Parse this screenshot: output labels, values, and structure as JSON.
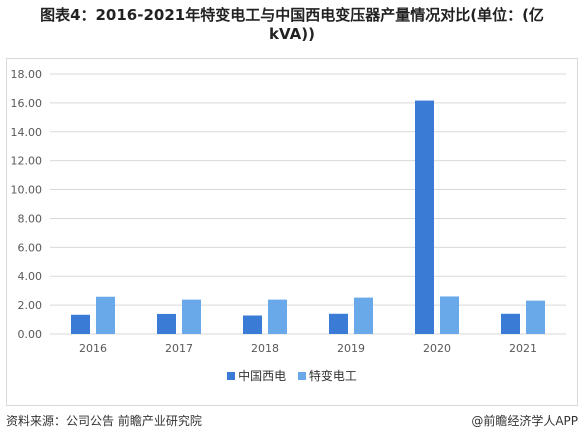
{
  "header": {
    "title_line1": "图表4：2016-2021年特变电工与中国西电变压器产量情况对比(单位：(亿",
    "title_line2": "kVA))"
  },
  "footer": {
    "source": "资料来源：公司公告 前瞻产业研究院",
    "brand": "@前瞻经济学人APP"
  },
  "colors": {
    "series1": "#3a7bd5",
    "series2": "#6aa9e9",
    "grid": "#d9d9d9",
    "axis_text": "#595959"
  },
  "chart_data": {
    "type": "bar",
    "title": "图表4：2016-2021年特变电工与中国西电变压器产量情况对比(单位：(亿kVA))",
    "categories": [
      "2016",
      "2017",
      "2018",
      "2019",
      "2020",
      "2021"
    ],
    "series": [
      {
        "name": "中国西电",
        "values": [
          1.33,
          1.39,
          1.28,
          1.4,
          16.16,
          1.4
        ]
      },
      {
        "name": "特变电工",
        "values": [
          2.58,
          2.38,
          2.38,
          2.52,
          2.6,
          2.31
        ]
      }
    ],
    "ylim": [
      0,
      18
    ],
    "yticks": [
      "0.00",
      "2.00",
      "4.00",
      "6.00",
      "8.00",
      "10.00",
      "12.00",
      "14.00",
      "16.00",
      "18.00"
    ],
    "grid": true,
    "legend_position": "bottom"
  }
}
